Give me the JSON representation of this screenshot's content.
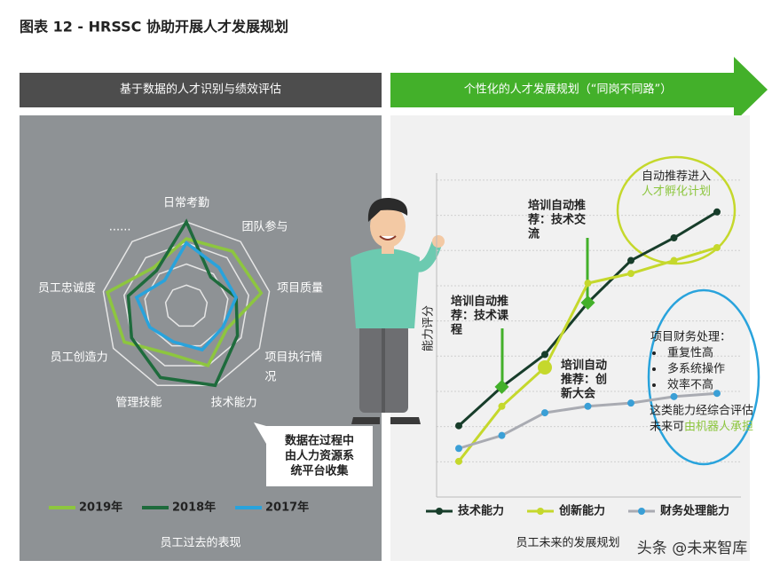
{
  "title": "图表 12 - HRSSC 协助开展人才发展规划",
  "left_header": "基于数据的人才识别与绩效评估",
  "right_header": "个性化的人才发展规划（“同岗不同路”）",
  "chart_data": [
    {
      "type": "radar",
      "categories": [
        "日常考勤",
        "团队参与",
        "项目质量",
        [
          "项目执行情",
          "况"
        ],
        "技术能力",
        "管理技能",
        "员工创造力",
        "员工忠诚度",
        "......"
      ],
      "rlim": [
        0,
        100
      ],
      "rticks": [
        25,
        50,
        75,
        100
      ],
      "series": [
        {
          "name": "2019年",
          "color": "#8dc63f",
          "values": [
            80,
            85,
            90,
            55,
            75,
            60,
            85,
            95,
            60
          ]
        },
        {
          "name": "2018年",
          "color": "#1e6b3c",
          "values": [
            100,
            45,
            60,
            70,
            100,
            90,
            75,
            70,
            55
          ]
        },
        {
          "name": "2017年",
          "color": "#29a3dc",
          "values": [
            75,
            60,
            60,
            50,
            55,
            45,
            50,
            60,
            40
          ]
        }
      ]
    },
    {
      "type": "line",
      "ylabel": "能力评分",
      "categories": [
        null,
        null,
        null,
        null,
        null,
        null,
        null
      ],
      "ylim": [
        0,
        10
      ],
      "grid": true,
      "series": [
        {
          "name": "技术能力",
          "color": "#173d2a",
          "marker_color": "#173d2a",
          "values": [
            2.2,
            3.4,
            4.4,
            6.0,
            7.3,
            8.0,
            8.8
          ]
        },
        {
          "name": "创新能力",
          "color": "#c5d82c",
          "marker_color": "#c5d82c",
          "values": [
            1.1,
            2.8,
            4.0,
            6.6,
            6.9,
            7.3,
            7.7
          ]
        },
        {
          "name": "财务处理能力",
          "color": "#a9abb2",
          "marker_color": "#3a9fd6",
          "values": [
            1.5,
            1.9,
            2.6,
            2.8,
            2.9,
            3.1,
            3.2
          ]
        }
      ],
      "annotations": [
        [
          "培训自动推",
          "荐：技术课",
          "程"
        ],
        [
          "培训自动推",
          "荐：技术交",
          "流"
        ],
        [
          "培训自动",
          "推荐：创",
          "新大会"
        ]
      ],
      "incubation": [
        "自动推荐进入",
        "人才孵化计划"
      ],
      "finance": {
        "heading": "项目财务处理：",
        "bullets": [
          "重复性高",
          "多系统操作",
          "效率不高"
        ],
        "conclusion": [
          "这类能力经综合评估",
          "未来可"
        ],
        "highlight": "由机器人承担"
      }
    }
  ],
  "left_note": [
    "数据在过程中",
    "由人力资源系",
    "统平台收集"
  ],
  "left_footer": "员工过去的表现",
  "right_footer": "员工未来的发展规划",
  "watermark": "头条 @未来智库"
}
